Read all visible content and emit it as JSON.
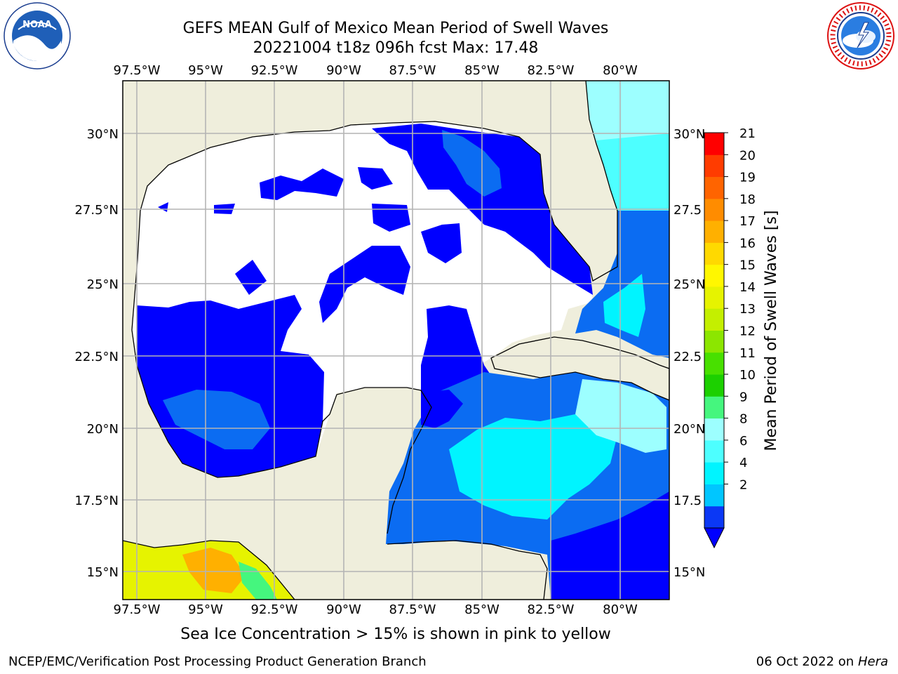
{
  "header": {
    "title": "GEFS MEAN Gulf of Mexico Mean Period of Swell Waves",
    "subtitle": "20221004 t18z 096h fcst   Max: 17.48"
  },
  "logos": {
    "noaa_icon": "noaa-logo",
    "noaa_text": "NOAA",
    "nws_icon": "nws-logo"
  },
  "map": {
    "lon_labels": [
      "97.5°W",
      "95°W",
      "92.5°W",
      "90°W",
      "87.5°W",
      "85°W",
      "82.5°W",
      "80°W"
    ],
    "lat_labels_left": [
      "30°N",
      "27.5°N",
      "25°N",
      "22.5°N",
      "20°N",
      "17.5°N",
      "15°N"
    ],
    "lat_labels_right": [
      "30°N",
      "27.5",
      "25°N",
      "22.5",
      "20°N",
      "17.5",
      "15°N"
    ],
    "colors": {
      "land": "#efeedc",
      "grid": "#b4b4b4",
      "coast": "#000000"
    }
  },
  "colorbar": {
    "label": "Mean Period of Swell Waves [s]",
    "ticks": [
      "21",
      "20",
      "19",
      "18",
      "17",
      "16",
      "15",
      "14",
      "13",
      "12",
      "11",
      "10",
      "9",
      "8",
      "6",
      "4",
      "2"
    ],
    "colors_bottom_to_top": [
      "#0b38f5",
      "#00c6ff",
      "#00f4ff",
      "#4dffff",
      "#9dffff",
      "#45f67e",
      "#1cd000",
      "#48e000",
      "#8ce600",
      "#c4ef00",
      "#e6f300",
      "#fff700",
      "#ffd900",
      "#ffb000",
      "#ff8c00",
      "#ff6400",
      "#ff3c00",
      "#ff0000"
    ],
    "extend_color": "#0000ff"
  },
  "footer": {
    "caption": "Sea Ice Concentration > 15% is shown in pink to yellow",
    "left": "NCEP/EMC/Verification Post Processing Product Generation Branch",
    "right_date": "06 Oct 2022 on ",
    "right_host": "Hera"
  }
}
